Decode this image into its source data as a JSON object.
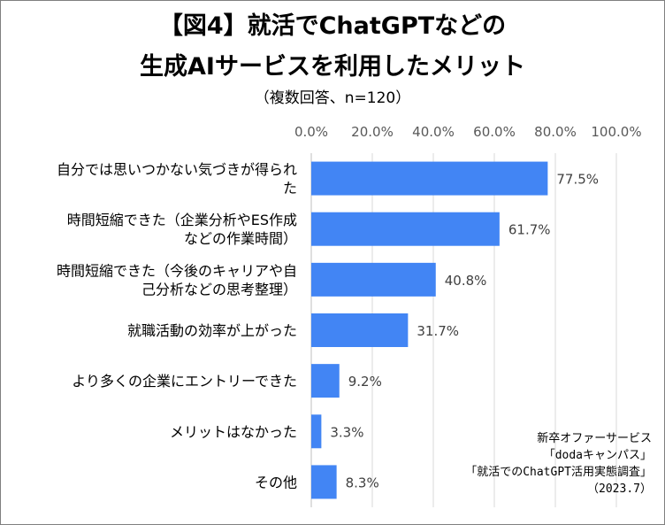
{
  "chart_data": {
    "type": "bar",
    "orientation": "horizontal",
    "title_line1": "【図4】就活でChatGPTなどの",
    "title_line2": "生成AIサービスを利用したメリット",
    "subtitle": "（複数回答、n=120）",
    "xlim": [
      0,
      100
    ],
    "xticks": [
      "0.0%",
      "20.0%",
      "40.0%",
      "60.0%",
      "80.0%",
      "100.0%"
    ],
    "grid": true,
    "categories": [
      [
        "自分では思いつかない気づきが得られ",
        "た"
      ],
      [
        "時間短縮できた（企業分析やES作成",
        "などの作業時間）"
      ],
      [
        "時間短縮できた（今後のキャリアや自",
        "己分析などの思考整理）"
      ],
      [
        "就職活動の効率が上がった"
      ],
      [
        "より多くの企業にエントリーできた"
      ],
      [
        "メリットはなかった"
      ],
      [
        "その他"
      ]
    ],
    "values": [
      77.5,
      61.7,
      40.8,
      31.7,
      9.2,
      3.3,
      8.3
    ],
    "value_labels": [
      "77.5%",
      "61.7%",
      "40.8%",
      "31.7%",
      "9.2%",
      "3.3%",
      "8.3%"
    ],
    "bar_color": "#4285f4"
  },
  "source": {
    "line1": "新卒オファーサービス",
    "line2": "「dodaキャンパス」",
    "line3": "「就活でのChatGPT活用実態調査」",
    "line4": "（2023.7）"
  }
}
